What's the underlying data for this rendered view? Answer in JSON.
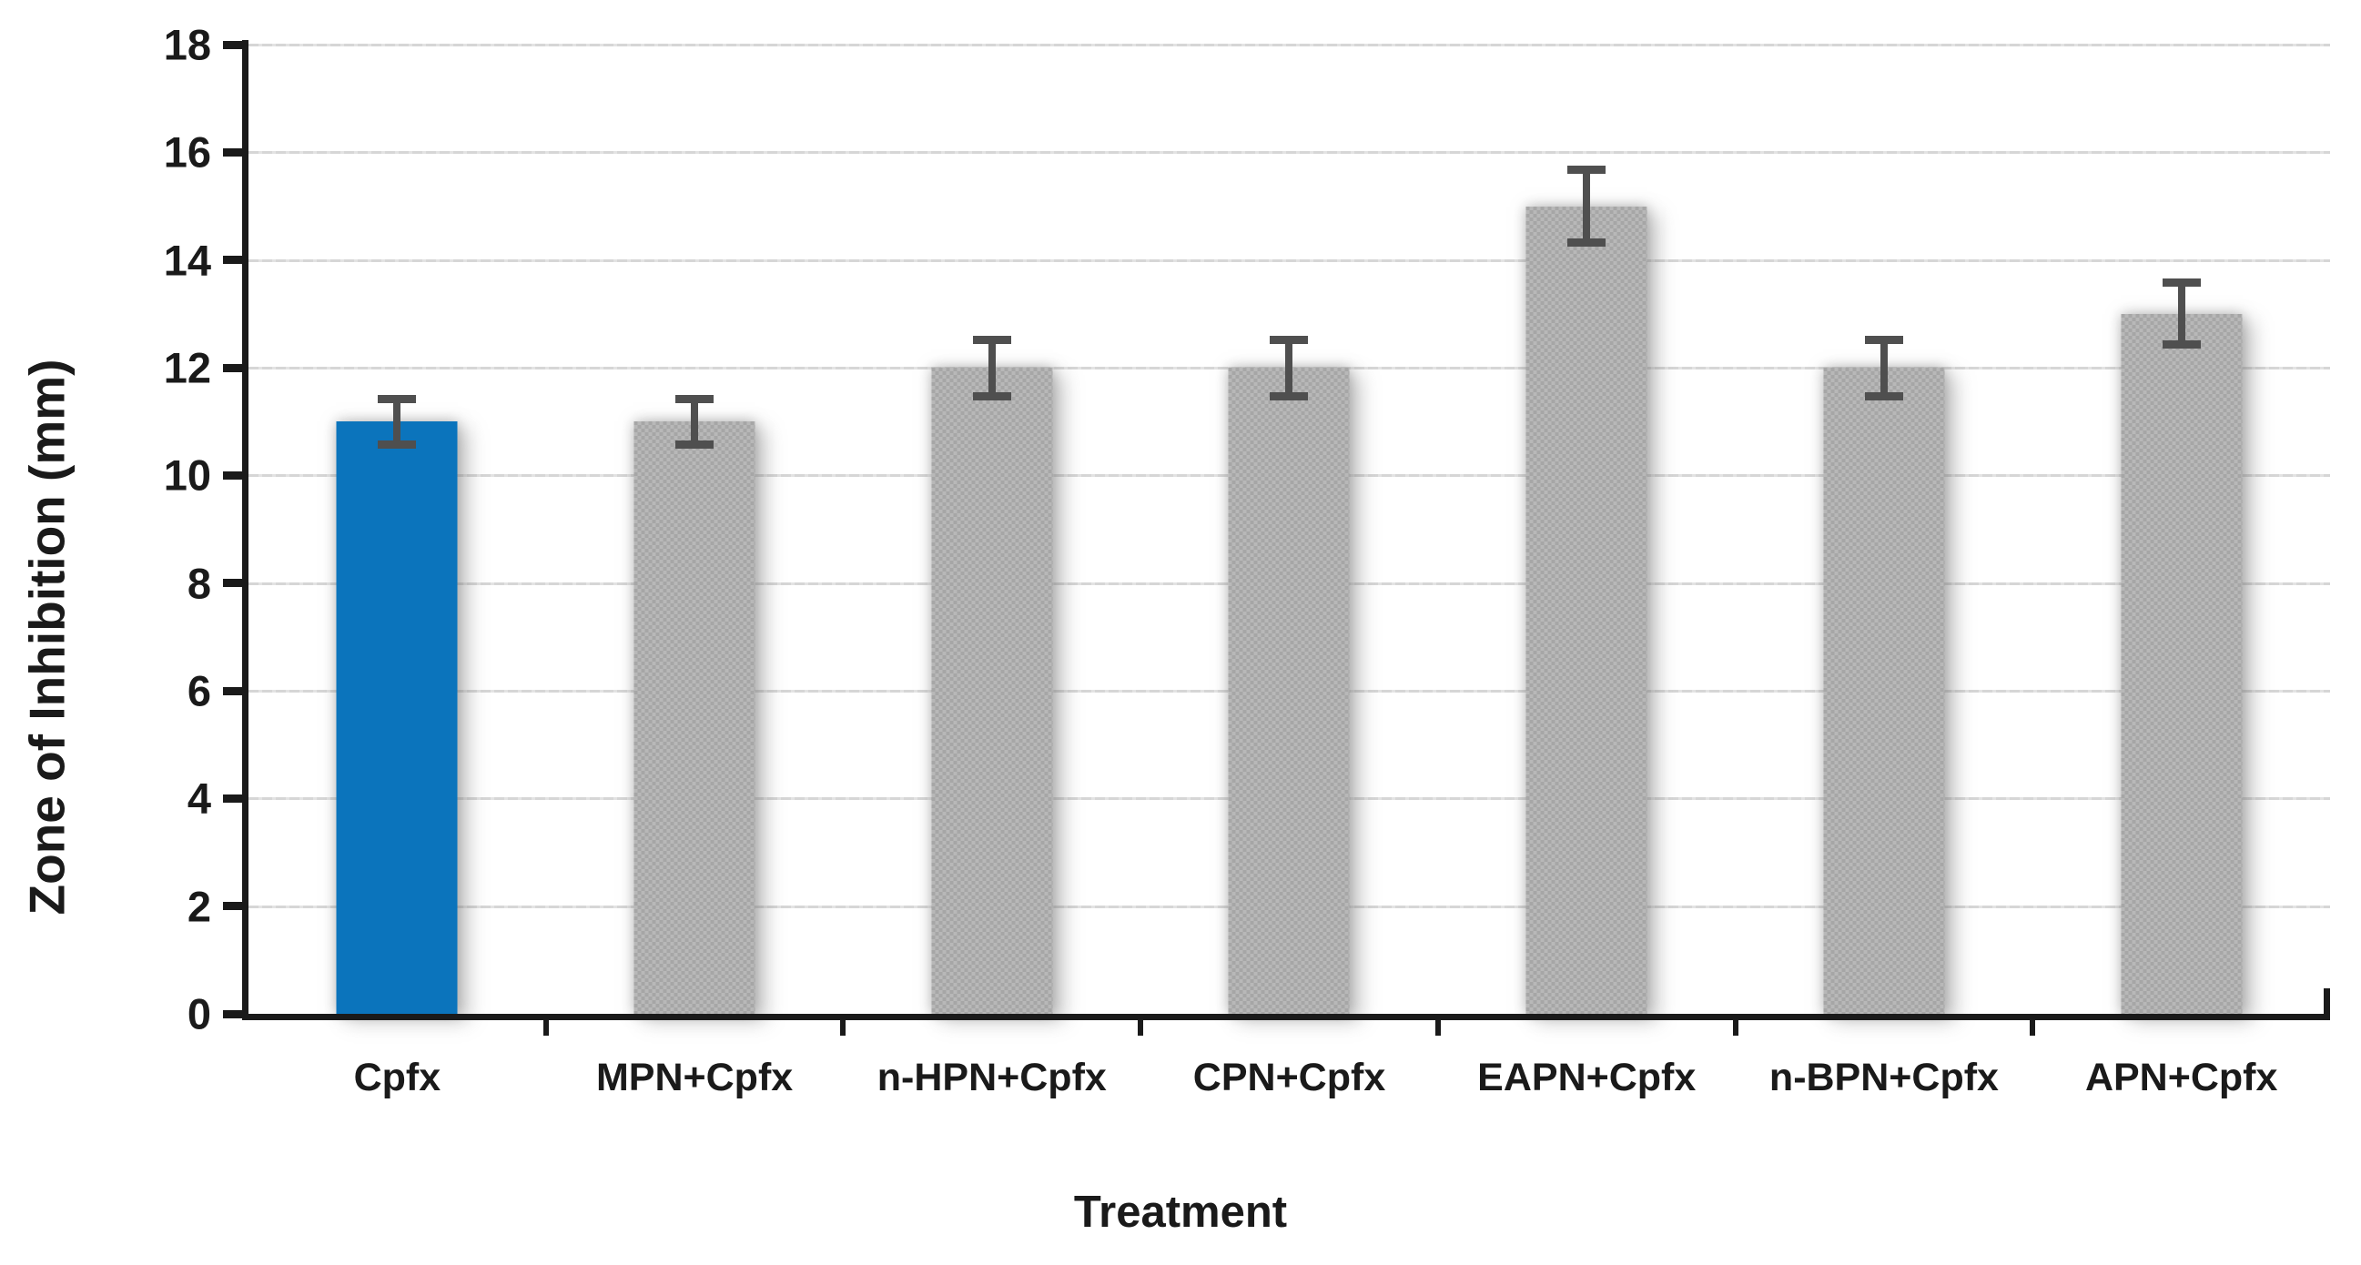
{
  "chart_data": {
    "type": "bar",
    "title": "",
    "xlabel": "Treatment",
    "ylabel": "Zone of Inhibition (mm)",
    "categories": [
      "Cpfx",
      "MPN+Cpfx",
      "n-HPN+Cpfx",
      "CPN+Cpfx",
      "EAPN+Cpfx",
      "n-BPN+Cpfx",
      "APN+Cpfx"
    ],
    "values": [
      11,
      11,
      12,
      12,
      15,
      12,
      13
    ],
    "error_bars": [
      0.5,
      0.5,
      0.6,
      0.6,
      0.75,
      0.6,
      0.65
    ],
    "highlight_index": 0,
    "ylim": [
      0,
      18
    ],
    "ytick_labels": [
      "0",
      "2",
      "4",
      "6",
      "8",
      "10",
      "12",
      "14",
      "16",
      "18"
    ],
    "grid": true,
    "legend_position": "none",
    "colors": {
      "highlight_bar": "#0b74bc",
      "default_bar": "#aeaeae",
      "error_bar": "#4f4f4f",
      "gridline": "#d6d6d6",
      "axis": "#1a1a1a",
      "text": "#1a1a1a"
    }
  }
}
